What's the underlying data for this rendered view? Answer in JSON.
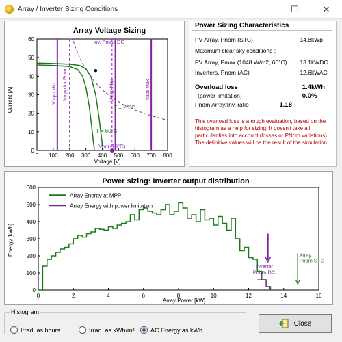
{
  "window": {
    "title": "Array / Inverter Sizing Conditions",
    "minimize": "—",
    "maximize": "☐",
    "close": "✕"
  },
  "colors": {
    "series_mpp": "#1a7a1a",
    "series_limit": "#7a1fa0",
    "accent_purple": "#8a1fa8",
    "red_note": "#b00000"
  },
  "voltage_chart": {
    "title": "Array Voltage Sizing",
    "xlabel": "Voltage [V]",
    "ylabel": "Current [A]",
    "xticks": [
      "0",
      "100",
      "200",
      "300",
      "400",
      "500",
      "600",
      "700",
      "800"
    ],
    "yticks": [
      "0",
      "10",
      "20",
      "30",
      "40",
      "50",
      "60"
    ],
    "labels": {
      "vmpp_min": "Vmpp Min",
      "vmpp_pnom": "Vmpp for Pnom",
      "vmpp_max": "Vmpp Max",
      "vabs_max": "Vabs Max",
      "inv_pmax": "Inv. Pmax DC",
      "t20": "T = 20°C",
      "t60": "T = 60°C",
      "voc": "Voc(-10°C)"
    }
  },
  "power_sizing": {
    "title": "Power Sizing Characteristics",
    "pv_pnom_label": "PV Array, Pnom (STC)",
    "pv_pnom_value": "14.8",
    "pv_pnom_unit": "kWp",
    "clear_sky_label": "Maximum clear sky conditions :",
    "pv_pmax_label": "PV Array, Pmax (1048 W/m2, 60°C)",
    "pv_pmax_value": "13.1",
    "pv_pmax_unit": "kWDC",
    "inv_pnom_label": "Inverters, Pnom (AC)",
    "inv_pnom_value": "12.6",
    "inv_pnom_unit": "kWAC",
    "overload_label": "Overload loss",
    "overload_value": "1.4",
    "overload_unit": "kWh",
    "power_limit_label": "(power limitation)",
    "power_limit_value": "0.0",
    "power_limit_unit": "%",
    "ratio_label": "Pnom Array/Inv. ratio",
    "ratio_value": "1.18",
    "note1": "This overload loss is a rough evaluation, based on the histogram as a help for sizing. It doesn't take all particularities into account (losses or PNom variations).",
    "note2": "The definitive values will be the result of the simulation."
  },
  "distribution_chart": {
    "title": "Power sizing: Inverter output distribution",
    "xlabel": "Array Power [kW]",
    "ylabel": "Energy [kWh]",
    "xticks": [
      "0",
      "2",
      "4",
      "6",
      "8",
      "10",
      "12",
      "14",
      "16"
    ],
    "yticks": [
      "0",
      "100",
      "200",
      "300",
      "400",
      "500",
      "600"
    ],
    "legend_mpp": "Array Energy at MPP",
    "legend_limit": "Array Energy with power limitation",
    "inverter_label_1": "Inverter",
    "inverter_label_2": "Pnom DC",
    "array_label_1": "Array",
    "array_label_2": "Pnom STC"
  },
  "chart_data": [
    {
      "type": "line",
      "title": "Array Voltage Sizing",
      "xlabel": "Voltage [V]",
      "ylabel": "Current [A]",
      "xlim": [
        0,
        800
      ],
      "ylim": [
        0,
        60
      ],
      "series": [
        {
          "name": "T = 20°C",
          "x": [
            0,
            100,
            200,
            260,
            300,
            330,
            360,
            380,
            395,
            405
          ],
          "y": [
            47,
            46.8,
            46.4,
            45.8,
            44,
            40,
            30,
            18,
            7,
            0
          ]
        },
        {
          "name": "T = 60°C",
          "x": [
            0,
            100,
            200,
            250,
            280,
            300,
            320,
            335,
            345,
            352
          ],
          "y": [
            46,
            45.8,
            45.2,
            43.5,
            40,
            34,
            24,
            13,
            5,
            0
          ]
        }
      ],
      "vertical_lines": {
        "vmpp_min": 125,
        "vmpp_pnom": 200,
        "vmpp_max": 480,
        "vabs_max": 700,
        "voc": 460
      },
      "mpp_point": [
        360,
        43
      ]
    },
    {
      "type": "line",
      "title": "Power sizing: Inverter output distribution",
      "xlabel": "Array Power [kW]",
      "ylabel": "Energy [kWh]",
      "xlim": [
        0,
        16
      ],
      "ylim": [
        0,
        600
      ],
      "series": [
        {
          "name": "Array Energy at MPP",
          "x": [
            0,
            0.25,
            0.5,
            0.75,
            1,
            1.25,
            1.5,
            1.75,
            2,
            2.25,
            2.5,
            2.75,
            3,
            3.25,
            3.5,
            3.75,
            4,
            4.25,
            4.5,
            4.75,
            5,
            5.25,
            5.5,
            5.75,
            6,
            6.25,
            6.5,
            6.75,
            7,
            7.25,
            7.5,
            7.75,
            8,
            8.25,
            8.5,
            8.75,
            9,
            9.25,
            9.5,
            9.75,
            10,
            10.25,
            10.5,
            10.75,
            11,
            11.25,
            11.5,
            11.75,
            12,
            12.25,
            12.5,
            12.75,
            13,
            13.25,
            13.5
          ],
          "y": [
            0,
            140,
            180,
            200,
            220,
            240,
            250,
            270,
            300,
            320,
            310,
            330,
            340,
            360,
            355,
            350,
            370,
            360,
            380,
            390,
            400,
            440,
            410,
            470,
            480,
            460,
            450,
            440,
            470,
            500,
            440,
            460,
            510,
            480,
            420,
            440,
            400,
            470,
            410,
            420,
            380,
            430,
            390,
            350,
            420,
            300,
            230,
            250,
            190,
            180,
            110,
            60,
            20,
            0,
            0
          ]
        },
        {
          "name": "Array Energy with power limitation",
          "x": [
            12.5,
            13.0,
            13.2
          ],
          "y": [
            60,
            20,
            0
          ]
        }
      ],
      "markers": {
        "inverter_pnom_dc": 13.1,
        "array_pnom_stc": 14.8
      }
    }
  ],
  "histogram": {
    "legend": "Histogram",
    "opt_hours": "Irrad. as hours",
    "opt_kwhm2": "Irrad. as kWh/m²",
    "opt_ac": "AC Energy as kWh",
    "selected": "opt_ac"
  },
  "close_button": {
    "label": "Close"
  }
}
